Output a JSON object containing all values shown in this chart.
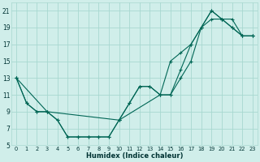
{
  "xlabel": "Humidex (Indice chaleur)",
  "bg_color": "#d0eeea",
  "grid_color": "#a8d8d0",
  "line_color": "#006655",
  "xlim": [
    -0.5,
    23.5
  ],
  "ylim": [
    5,
    22
  ],
  "yticks": [
    5,
    7,
    9,
    11,
    13,
    15,
    17,
    19,
    21
  ],
  "xticks": [
    0,
    1,
    2,
    3,
    4,
    5,
    6,
    7,
    8,
    9,
    10,
    11,
    12,
    13,
    14,
    15,
    16,
    17,
    18,
    19,
    20,
    21,
    22,
    23
  ],
  "line1_x": [
    0,
    1,
    2,
    3,
    4,
    5,
    6,
    7,
    8,
    9,
    10,
    11,
    12,
    13,
    14,
    15,
    16,
    17,
    18,
    19,
    20,
    21,
    22,
    23
  ],
  "line1_y": [
    13,
    10,
    9,
    9,
    8,
    6,
    6,
    6,
    6,
    6,
    8,
    10,
    12,
    12,
    11,
    11,
    13,
    15,
    19,
    21,
    20,
    19,
    18,
    18
  ],
  "line2_x": [
    0,
    1,
    2,
    3,
    4,
    5,
    6,
    7,
    8,
    9,
    10,
    11,
    12,
    13,
    14,
    15,
    16,
    17,
    18,
    19,
    20,
    21,
    22,
    23
  ],
  "line2_y": [
    13,
    10,
    9,
    9,
    8,
    6,
    6,
    6,
    6,
    6,
    8,
    10,
    12,
    12,
    11,
    15,
    16,
    17,
    19,
    20,
    20,
    20,
    18,
    18
  ],
  "line3_x": [
    0,
    3,
    10,
    14,
    15,
    16,
    17,
    18,
    19,
    20,
    21,
    22,
    23
  ],
  "line3_y": [
    13,
    9,
    8,
    11,
    11,
    14,
    17,
    19,
    21,
    20,
    19,
    18,
    18
  ]
}
